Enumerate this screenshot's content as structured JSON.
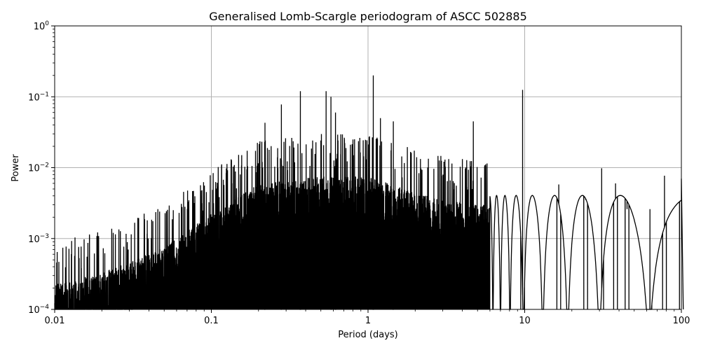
{
  "chart_data": {
    "type": "line",
    "title": "Generalised Lomb-Scargle periodogram of ASCC 502885",
    "xlabel": "Period (days)",
    "ylabel": "Power",
    "xscale": "log",
    "yscale": "log",
    "xlim": [
      0.01,
      100
    ],
    "ylim": [
      0.0001,
      1
    ],
    "grid": true,
    "line_color": "#000000",
    "grid_color": "#b0b0b0",
    "x_ticks": [
      {
        "value": 0.01,
        "label": "0.01"
      },
      {
        "value": 0.1,
        "label": "0.1"
      },
      {
        "value": 1,
        "label": "1"
      },
      {
        "value": 10,
        "label": "10"
      },
      {
        "value": 100,
        "label": "100"
      }
    ],
    "y_ticks": [
      {
        "value": 1,
        "base": "10",
        "exp": "0"
      },
      {
        "value": 0.1,
        "base": "10",
        "exp": "−1"
      },
      {
        "value": 0.01,
        "base": "10",
        "exp": "−2"
      },
      {
        "value": 0.001,
        "base": "10",
        "exp": "−3"
      },
      {
        "value": 0.0001,
        "base": "10",
        "exp": "−4"
      }
    ],
    "prominent_peaks": [
      {
        "period": 0.22,
        "power": 0.043
      },
      {
        "period": 0.28,
        "power": 0.078
      },
      {
        "period": 0.37,
        "power": 0.12
      },
      {
        "period": 0.54,
        "power": 0.12
      },
      {
        "period": 0.58,
        "power": 0.1
      },
      {
        "period": 0.62,
        "power": 0.06
      },
      {
        "period": 1.08,
        "power": 0.2
      },
      {
        "period": 1.2,
        "power": 0.05
      },
      {
        "period": 1.45,
        "power": 0.045
      },
      {
        "period": 3.1,
        "power": 0.013
      },
      {
        "period": 4.7,
        "power": 0.045
      },
      {
        "period": 9.7,
        "power": 0.125
      },
      {
        "period": 16.5,
        "power": 0.0058
      },
      {
        "period": 24.5,
        "power": 0.0035
      },
      {
        "period": 31.0,
        "power": 0.0098
      },
      {
        "period": 38.0,
        "power": 0.006
      },
      {
        "period": 45.0,
        "power": 0.0026
      },
      {
        "period": 63.0,
        "power": 0.0026
      },
      {
        "period": 78.0,
        "power": 0.0077
      },
      {
        "period": 100.0,
        "power": 0.007
      }
    ],
    "envelope": [
      {
        "period": 0.01,
        "power": 0.00015
      },
      {
        "period": 0.02,
        "power": 0.00022
      },
      {
        "period": 0.05,
        "power": 0.0005
      },
      {
        "period": 0.1,
        "power": 0.0015
      },
      {
        "period": 0.2,
        "power": 0.004
      },
      {
        "period": 0.5,
        "power": 0.005
      },
      {
        "period": 1.0,
        "power": 0.005
      },
      {
        "period": 2.0,
        "power": 0.003
      },
      {
        "period": 5.0,
        "power": 0.002
      }
    ]
  }
}
